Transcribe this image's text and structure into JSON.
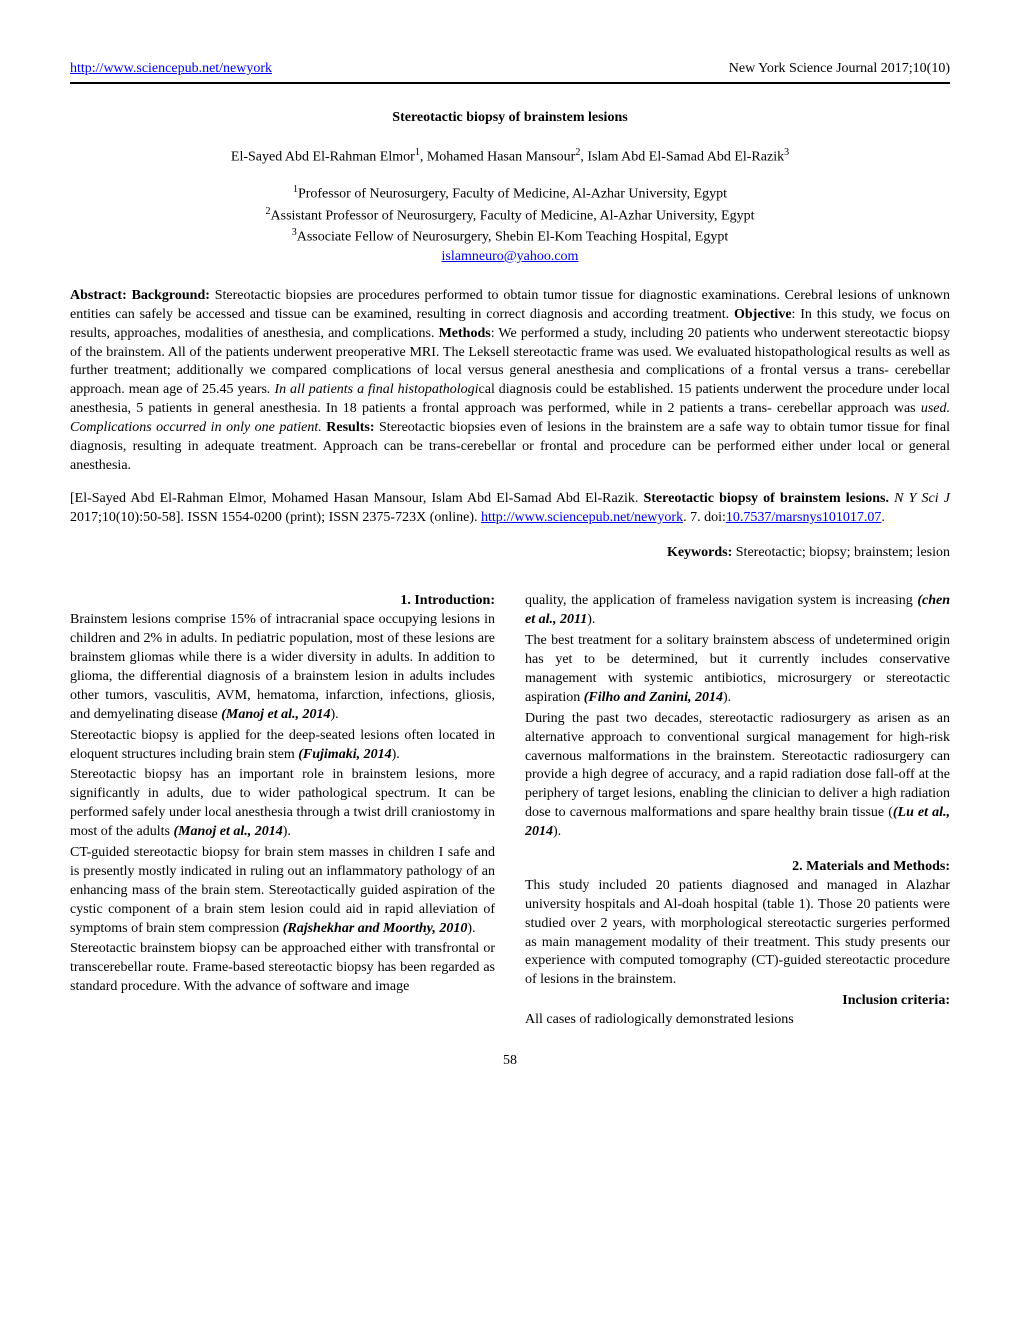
{
  "header": {
    "url_text": "http://www.sciencepub.net/newyork",
    "journal": "New York Science Journal 2017;10(10)"
  },
  "title": "Stereotactic biopsy of brainstem lesions",
  "authors_html": "El-Sayed Abd El-Rahman Elmor<sup>1</sup>, Mohamed Hasan Mansour<sup>2</sup>, Islam Abd El-Samad Abd El-Razik<sup>3</sup>",
  "affiliations": [
    "<sup>1</sup>Professor of Neurosurgery, Faculty of Medicine, Al-Azhar University, Egypt",
    "<sup>2</sup>Assistant Professor of Neurosurgery, Faculty of Medicine, Al-Azhar University, Egypt",
    "<sup>3</sup>Associate Fellow of Neurosurgery, Shebin El-Kom Teaching Hospital, Egypt"
  ],
  "email": "islamneuro@yahoo.com",
  "abstract_html": "<b>Abstract: Background:</b> Stereotactic biopsies are procedures performed to obtain tumor tissue for diagnostic examinations. Cerebral lesions of unknown entities can safely be accessed and tissue can be examined, resulting in correct diagnosis and according treatment. <b>Objective</b>: In this study, we focus on results, approaches, modalities of anesthesia, and complications. <b>Methods</b>: We performed a study, including 20 patients who underwent stereotactic biopsy of the brainstem. All of the patients underwent preoperative MRI. The Leksell stereotactic frame was used. We evaluated histopathological results as well as further treatment; additionally we compared complications of local versus general anesthesia and complications of a frontal versus a trans- cerebellar approach. mean age of 25.45 years<span class=\"italic-run\">. In all patients a final histopathologi</span>cal diagnosis could be established. 15 patients underwent the procedure under local anesthesia, 5 patients in general anesthesia. In 18 patients a frontal approach was performed, while in 2 patients a trans- cerebellar approach was <span class=\"italic-run\">used. Complications occurred in only one patient.</span> <b>Results:</b> Stereotactic biopsies even of lesions in the brainstem are a safe way to obtain tumor tissue for final diagnosis, resulting in adequate treatment. Approach can be trans-cerebellar or frontal and procedure can be performed either under local or general anesthesia.",
  "citation_html": "[El-Sayed Abd El-Rahman Elmor, Mohamed Hasan Mansour, Islam Abd El-Samad Abd El-Razik. <b>Stereotactic biopsy of brainstem lesions.</b> <span class=\"italic-run\">N Y Sci J</span> 2017;10(10):50-58]. ISSN 1554-0200 (print); ISSN 2375-723X (online). <a href=\"#\">http://www.sciencepub.net/newyork</a>. 7. doi:<a href=\"#\">10.7537/marsnys101017.07</a>.",
  "keywords_html": "<b>Keywords:</b> Stereotactic; biopsy; brainstem; lesion",
  "left_column": [
    {
      "type": "sec-head",
      "html": "1. <b>Introduction</b>:"
    },
    {
      "type": "para",
      "html": "Brainstem lesions comprise 15% of intracranial space occupying lesions in children and 2% in adults. In pediatric population, most of these lesions are brainstem gliomas while there is a wider diversity in adults. In addition to glioma, the differential diagnosis of a brainstem lesion in adults includes other tumors, vasculitis, AVM, hematoma, infarction, infections, gliosis, and demyelinating disease <span class=\"ref\">(Manoj et al., 2014</span>)."
    },
    {
      "type": "para",
      "html": "Stereotactic biopsy is applied for the deep-seated lesions often located in eloquent structures including brain stem <span class=\"ref\">(Fujimaki, 2014</span>)."
    },
    {
      "type": "para",
      "html": "Stereotactic biopsy has an important role in brainstem lesions, more significantly in adults, due to wider pathological spectrum. It can be performed safely under local anesthesia through a twist drill craniostomy in most of the adults <span class=\"ref\">(Manoj et al., 2014</span>)."
    },
    {
      "type": "para",
      "html": "CT-guided stereotactic biopsy for brain stem masses in children I safe and is presently mostly indicated in ruling out an inflammatory pathology of an enhancing mass of the brain stem. Stereotactically guided aspiration of the cystic component of a brain stem lesion could aid in rapid alleviation of symptoms of brain stem compression <span class=\"ref\">(Rajshekhar and Moorthy, 2010</span>)."
    },
    {
      "type": "para",
      "html": "Stereotactic brainstem biopsy can be approached either with transfrontal or transcerebellar route. Frame-based stereotactic biopsy has been regarded as standard procedure. With the advance of software and image"
    }
  ],
  "right_column": [
    {
      "type": "para",
      "html": "quality, the application of frameless navigation system is increasing <span class=\"ref\">(chen et al., 2011</span>)."
    },
    {
      "type": "para",
      "html": "The best treatment for a solitary brainstem abscess of undetermined origin has yet to be determined, but it currently includes conservative management with systemic antibiotics, microsurgery or stereotactic aspiration <span class=\"ref\">(Filho and Zanini, 2014</span>)."
    },
    {
      "type": "para",
      "html": "During the past two decades, stereotactic radiosurgery as arisen as an alternative approach to conventional surgical management for high-risk cavernous malformations in the brainstem. Stereotactic radiosurgery can provide a high degree of accuracy, and a rapid radiation dose fall-off at the periphery of target lesions, enabling the clinician to deliver a high radiation dose to cavernous malformations and spare healthy brain tissue (<span class=\"ref\">(Lu et al., 2014</span>)."
    },
    {
      "type": "spacer",
      "html": ""
    },
    {
      "type": "sec-head",
      "html": "2. <b>Materials and Methods</b>:"
    },
    {
      "type": "para",
      "html": "This study included 20 patients diagnosed and managed in Alazhar university hospitals and Al-doah hospital (table 1). Those 20 patients were studied over 2 years, with morphological stereotactic surgeries performed as main management modality of their treatment. This study presents our experience with computed tomography (CT)-guided stereotactic procedure of lesions in the brainstem."
    },
    {
      "type": "sub-head",
      "html": "<b>Inclusion criteria</b>:"
    },
    {
      "type": "para",
      "html": "All cases of radiologically demonstrated lesions"
    }
  ],
  "page_number": "58"
}
